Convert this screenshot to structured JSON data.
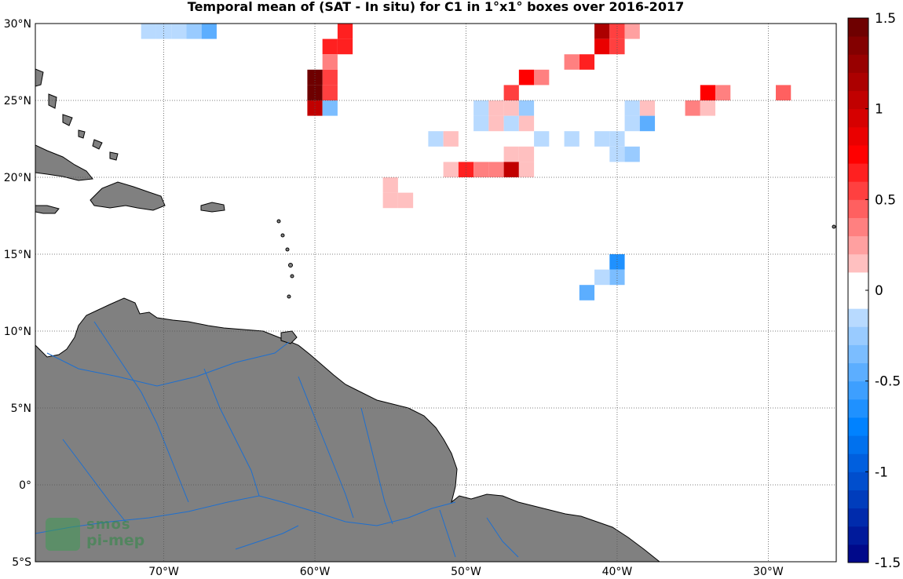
{
  "title": "Temporal mean of (SAT - In situ) for C1 in 1°x1° boxes over 2016-2017",
  "map": {
    "lon_range": [
      -78.5,
      -25.5
    ],
    "lat_range": [
      -5,
      30
    ],
    "lat_ticks": [
      {
        "value": 30,
        "label": "30°N"
      },
      {
        "value": 25,
        "label": "25°N"
      },
      {
        "value": 20,
        "label": "20°N"
      },
      {
        "value": 15,
        "label": "15°N"
      },
      {
        "value": 10,
        "label": "10°N"
      },
      {
        "value": 5,
        "label": "5°N"
      },
      {
        "value": 0,
        "label": "0°"
      },
      {
        "value": -5,
        "label": "5°S"
      }
    ],
    "lon_ticks": [
      {
        "value": -70,
        "label": "70°W"
      },
      {
        "value": -60,
        "label": "60°W"
      },
      {
        "value": -50,
        "label": "50°W"
      },
      {
        "value": -40,
        "label": "40°W"
      },
      {
        "value": -30,
        "label": "30°W"
      }
    ],
    "land_color": "#808080",
    "river_color": "#1e6fcf",
    "grid": "dotted"
  },
  "colorbar": {
    "min": -1.5,
    "max": 1.5,
    "tick_labels": [
      {
        "value": 1.5,
        "label": "1.5"
      },
      {
        "value": 1,
        "label": "1"
      },
      {
        "value": 0.5,
        "label": "0.5"
      },
      {
        "value": 0,
        "label": "0"
      },
      {
        "value": -0.5,
        "label": "-0.5"
      },
      {
        "value": -1,
        "label": "-1"
      },
      {
        "value": -1.5,
        "label": "-1.5"
      }
    ],
    "colormap": "blue-white-red"
  },
  "chart_data": {
    "type": "heatmap",
    "title": "Temporal mean of (SAT - In situ) for C1 in 1°x1° boxes over 2016-2017",
    "xlabel": "",
    "ylabel": "",
    "xlim": [
      -78.5,
      -25.5
    ],
    "ylim": [
      -5,
      30
    ],
    "cell_size_deg": 1,
    "cells": [
      {
        "lon": -71,
        "lat": 29.5,
        "v": -0.1
      },
      {
        "lon": -70,
        "lat": 29.5,
        "v": -0.1
      },
      {
        "lon": -69,
        "lat": 29.5,
        "v": -0.1
      },
      {
        "lon": -68,
        "lat": 29.5,
        "v": -0.25
      },
      {
        "lon": -67,
        "lat": 29.5,
        "v": -0.5
      },
      {
        "lon": -58,
        "lat": 29.5,
        "v": 0.6
      },
      {
        "lon": -58,
        "lat": 28.5,
        "v": 0.6
      },
      {
        "lon": -59,
        "lat": 28.5,
        "v": 0.6
      },
      {
        "lon": -59,
        "lat": 27.5,
        "v": 0.35
      },
      {
        "lon": -59,
        "lat": 26.5,
        "v": 0.5
      },
      {
        "lon": -60,
        "lat": 26.5,
        "v": 1.4
      },
      {
        "lon": -60,
        "lat": 25.5,
        "v": 1.4
      },
      {
        "lon": -59,
        "lat": 25.5,
        "v": 0.5
      },
      {
        "lon": -60,
        "lat": 24.5,
        "v": 1.0
      },
      {
        "lon": -59,
        "lat": 24.5,
        "v": -0.3
      },
      {
        "lon": -41,
        "lat": 29.5,
        "v": 1.1
      },
      {
        "lon": -40,
        "lat": 29.5,
        "v": 0.5
      },
      {
        "lon": -39,
        "lat": 29.5,
        "v": 0.2
      },
      {
        "lon": -41,
        "lat": 28.5,
        "v": 0.8
      },
      {
        "lon": -40,
        "lat": 28.5,
        "v": 0.5
      },
      {
        "lon": -42,
        "lat": 27.5,
        "v": 0.6
      },
      {
        "lon": -43,
        "lat": 27.5,
        "v": 0.3
      },
      {
        "lon": -45,
        "lat": 26.5,
        "v": 0.35
      },
      {
        "lon": -46,
        "lat": 26.5,
        "v": 0.7
      },
      {
        "lon": -47,
        "lat": 25.5,
        "v": 0.5
      },
      {
        "lon": -49,
        "lat": 24.5,
        "v": -0.1
      },
      {
        "lon": -48,
        "lat": 24.5,
        "v": 0.15
      },
      {
        "lon": -47,
        "lat": 24.5,
        "v": 0.15
      },
      {
        "lon": -46,
        "lat": 24.5,
        "v": -0.25
      },
      {
        "lon": -49,
        "lat": 23.5,
        "v": -0.1
      },
      {
        "lon": -48,
        "lat": 23.5,
        "v": 0.15
      },
      {
        "lon": -47,
        "lat": 23.5,
        "v": -0.1
      },
      {
        "lon": -46,
        "lat": 23.5,
        "v": 0.15
      },
      {
        "lon": -52,
        "lat": 22.5,
        "v": -0.1
      },
      {
        "lon": -51,
        "lat": 22.5,
        "v": 0.15
      },
      {
        "lon": -45,
        "lat": 22.5,
        "v": -0.1
      },
      {
        "lon": -43,
        "lat": 22.5,
        "v": -0.1
      },
      {
        "lon": -41,
        "lat": 22.5,
        "v": -0.2
      },
      {
        "lon": -40,
        "lat": 22.5,
        "v": -0.15
      },
      {
        "lon": -40,
        "lat": 21.5,
        "v": -0.1
      },
      {
        "lon": -39,
        "lat": 21.5,
        "v": -0.25
      },
      {
        "lon": -47,
        "lat": 21.5,
        "v": 0.15
      },
      {
        "lon": -46,
        "lat": 21.5,
        "v": 0.15
      },
      {
        "lon": -51,
        "lat": 20.5,
        "v": 0.15
      },
      {
        "lon": -50,
        "lat": 20.5,
        "v": 0.6
      },
      {
        "lon": -49,
        "lat": 20.5,
        "v": 0.35
      },
      {
        "lon": -48,
        "lat": 20.5,
        "v": 0.35
      },
      {
        "lon": -47,
        "lat": 20.5,
        "v": 1.0
      },
      {
        "lon": -46,
        "lat": 20.5,
        "v": 0.15
      },
      {
        "lon": -55,
        "lat": 19.5,
        "v": 0.15
      },
      {
        "lon": -55,
        "lat": 18.5,
        "v": 0.15
      },
      {
        "lon": -54,
        "lat": 18.5,
        "v": 0.15
      },
      {
        "lon": -39,
        "lat": 24.5,
        "v": -0.1
      },
      {
        "lon": -38,
        "lat": 24.5,
        "v": 0.15
      },
      {
        "lon": -39,
        "lat": 23.5,
        "v": -0.1
      },
      {
        "lon": -38,
        "lat": 23.5,
        "v": -0.5
      },
      {
        "lon": -35,
        "lat": 24.5,
        "v": 0.3
      },
      {
        "lon": -34,
        "lat": 24.5,
        "v": 0.15
      },
      {
        "lon": -34,
        "lat": 25.5,
        "v": 0.7
      },
      {
        "lon": -33,
        "lat": 25.5,
        "v": 0.3
      },
      {
        "lon": -29,
        "lat": 25.5,
        "v": 0.45
      },
      {
        "lon": -40,
        "lat": 14.5,
        "v": -0.65
      },
      {
        "lon": -40,
        "lat": 13.5,
        "v": -0.3
      },
      {
        "lon": -41,
        "lat": 13.5,
        "v": -0.1
      },
      {
        "lon": -42,
        "lat": 12.5,
        "v": -0.45
      }
    ]
  },
  "logo": {
    "line1": "smos",
    "line2": "pi-mep"
  }
}
